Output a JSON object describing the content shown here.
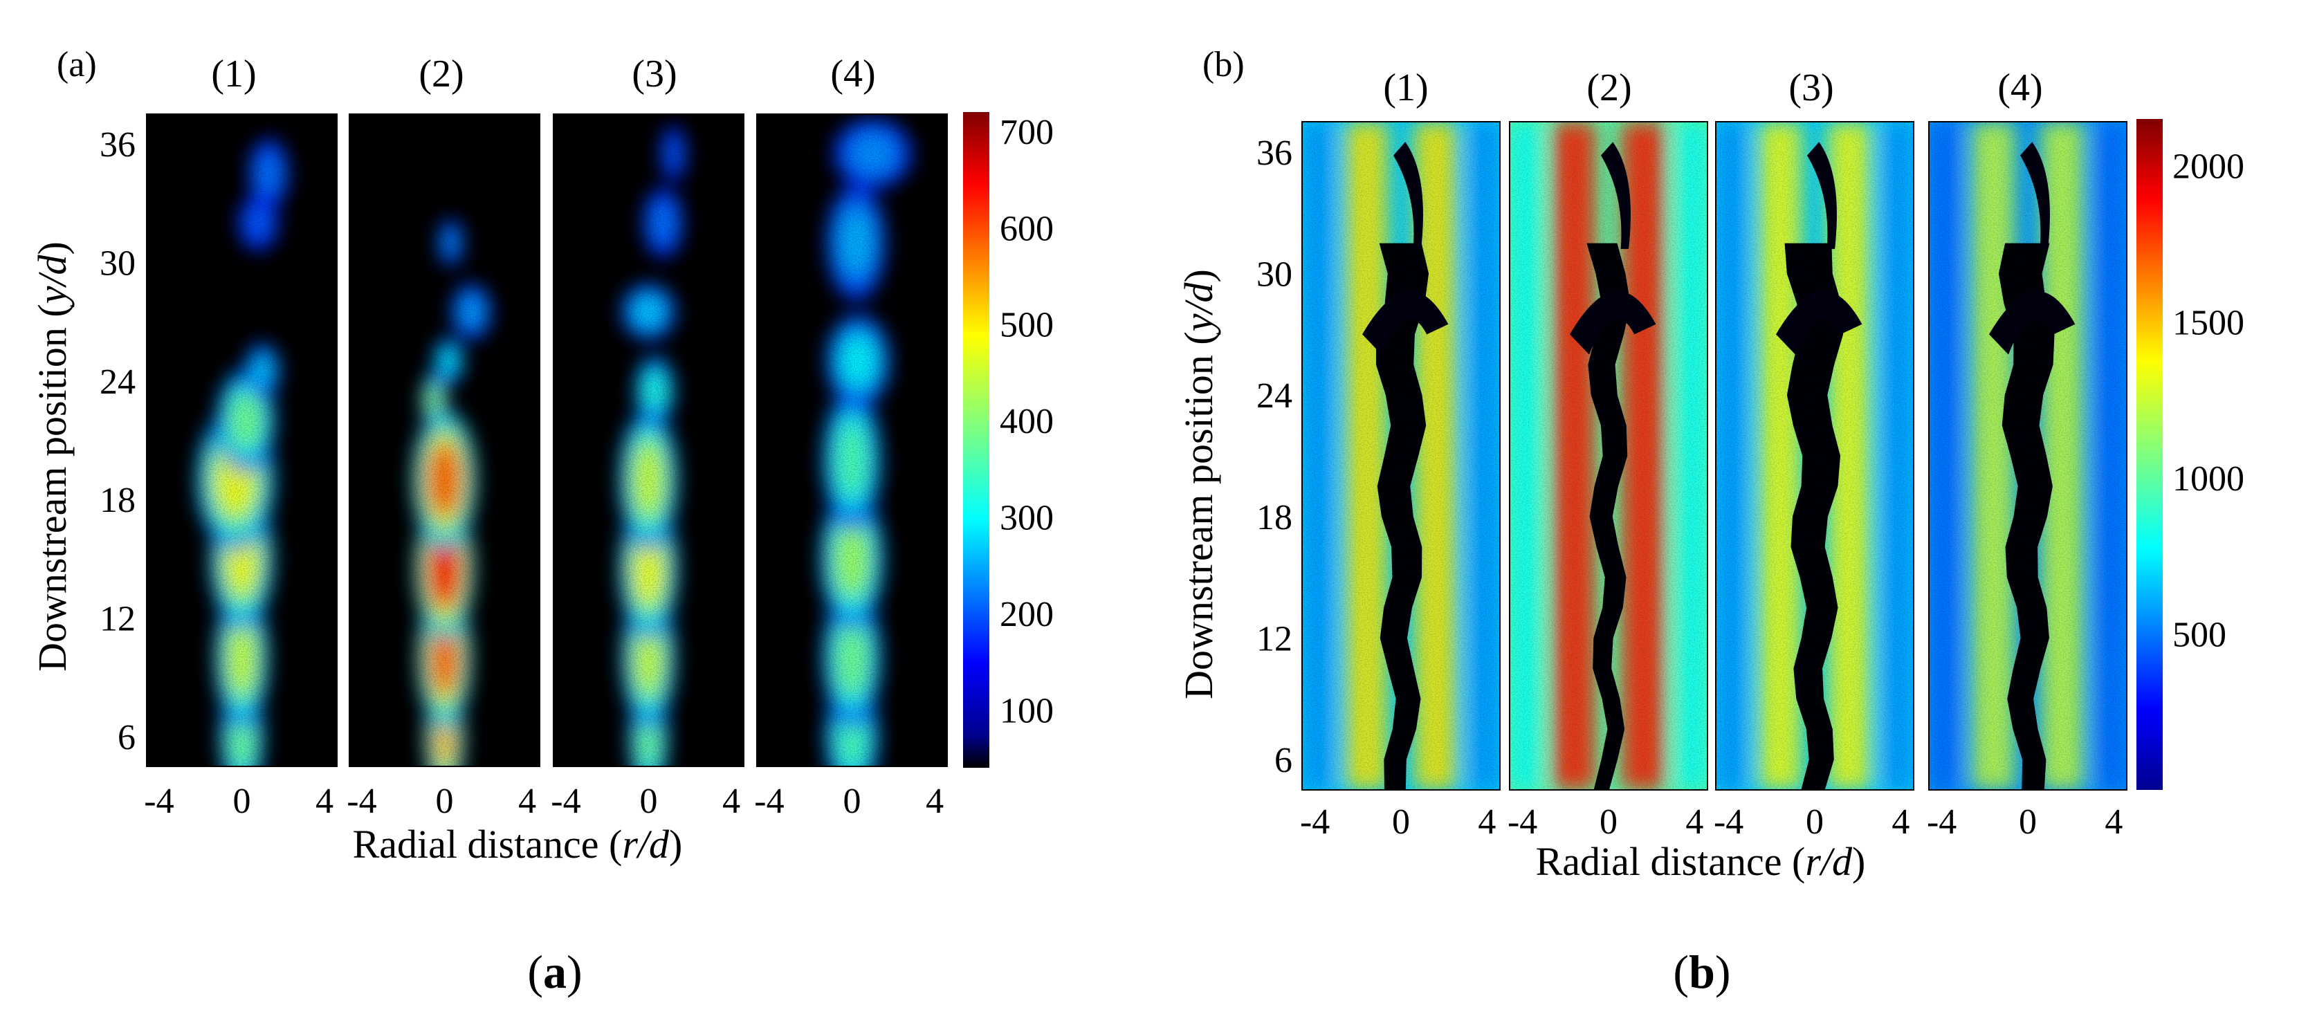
{
  "figure": {
    "captions": [
      {
        "open": "(",
        "letter": "a",
        "close": ")"
      },
      {
        "open": "(",
        "letter": "b",
        "close": ")"
      }
    ]
  },
  "chart_data": [
    {
      "type": "heatmap",
      "panel_label": "(a)",
      "subplot_titles": [
        "(1)",
        "(2)",
        "(3)",
        "(4)"
      ],
      "ylabel_prefix": "Downstream position (",
      "ylabel_var": "y/d",
      "ylabel_suffix": ")",
      "xlabel_prefix": "Radial distance (",
      "xlabel_var": "r/d",
      "xlabel_suffix": ")",
      "xticks": [
        "-4",
        "0",
        "4"
      ],
      "xlim": [
        -4.6,
        4.6
      ],
      "yticks": [
        "6",
        "12",
        "18",
        "24",
        "30",
        "36"
      ],
      "ylim": [
        4.5,
        37.5
      ],
      "colorbar_ticks": [
        "100",
        "200",
        "300",
        "400",
        "500",
        "600",
        "700"
      ],
      "colorbar_range": [
        40,
        720
      ],
      "colormap": "jet",
      "background": "#000000",
      "variant": "jet",
      "fields": [
        {
          "blobs": [
            [
              0,
              6,
              0.9,
              2.5,
              0.45
            ],
            [
              0,
              10,
              1.1,
              3,
              0.55
            ],
            [
              0,
              15,
              1.3,
              3,
              0.6
            ],
            [
              -0.3,
              19,
              1.6,
              3,
              0.6
            ],
            [
              0.2,
              22,
              1.2,
              2.2,
              0.45
            ],
            [
              1.0,
              24.5,
              0.7,
              1.2,
              0.25
            ],
            [
              1.3,
              34.5,
              0.8,
              1.5,
              0.15
            ],
            [
              0.8,
              32,
              0.8,
              1.2,
              0.12
            ]
          ]
        },
        {
          "blobs": [
            [
              0,
              6,
              0.8,
              2.5,
              0.7
            ],
            [
              0,
              10,
              1.1,
              3,
              0.8
            ],
            [
              0,
              14.5,
              1.2,
              3,
              0.9
            ],
            [
              0,
              19,
              1.3,
              3,
              0.8
            ],
            [
              -0.5,
              23,
              0.5,
              1.2,
              0.5
            ],
            [
              0.2,
              25,
              0.6,
              1,
              0.3
            ],
            [
              1.3,
              27.5,
              0.8,
              1.2,
              0.2
            ],
            [
              0.3,
              31,
              0.5,
              1,
              0.18
            ]
          ]
        },
        {
          "blobs": [
            [
              0,
              6,
              0.8,
              2.5,
              0.45
            ],
            [
              0,
              10,
              1.1,
              3,
              0.55
            ],
            [
              0,
              14.5,
              1.2,
              3,
              0.6
            ],
            [
              0,
              19,
              1.2,
              3,
              0.55
            ],
            [
              0.3,
              23.5,
              0.8,
              1.5,
              0.35
            ],
            [
              0,
              27.5,
              1.1,
              1.2,
              0.25
            ],
            [
              0.7,
              32,
              0.8,
              1.5,
              0.15
            ],
            [
              1.2,
              35.5,
              0.5,
              1.2,
              0.12
            ]
          ]
        },
        {
          "blobs": [
            [
              0,
              6,
              1.1,
              2.5,
              0.4
            ],
            [
              0,
              10,
              1.2,
              3,
              0.45
            ],
            [
              0,
              15,
              1.3,
              3,
              0.5
            ],
            [
              0,
              20,
              1.2,
              3,
              0.4
            ],
            [
              0.3,
              25,
              1.3,
              2,
              0.3
            ],
            [
              0.2,
              31,
              1.2,
              2.5,
              0.22
            ],
            [
              1.0,
              35.5,
              1.6,
              1.5,
              0.18
            ]
          ]
        }
      ]
    },
    {
      "type": "heatmap",
      "panel_label": "(b)",
      "subplot_titles": [
        "(1)",
        "(2)",
        "(3)",
        "(4)"
      ],
      "ylabel_prefix": "Downstream position (",
      "ylabel_var": "y/d",
      "ylabel_suffix": ")",
      "xlabel_prefix": "Radial distance (",
      "xlabel_var": "r/d",
      "xlabel_suffix": ")",
      "xticks": [
        "-4",
        "0",
        "4"
      ],
      "xlim": [
        -4.6,
        4.6
      ],
      "yticks": [
        "6",
        "12",
        "18",
        "24",
        "30",
        "36"
      ],
      "ylim": [
        4.5,
        37.5
      ],
      "colorbar_ticks": [
        "500",
        "1000",
        "1500",
        "2000"
      ],
      "colorbar_range": [
        0,
        2150
      ],
      "colormap": "jet",
      "background": "#1f9fe8",
      "variant": "jetb",
      "fields": [
        {
          "level": 0.5,
          "hole_width": 0.9,
          "bright": 0.68
        },
        {
          "level": 0.7,
          "hole_width": 0.65,
          "bright": 0.9
        },
        {
          "level": 0.5,
          "hole_width": 1.0,
          "bright": 0.65
        },
        {
          "level": 0.42,
          "hole_width": 0.95,
          "bright": 0.6
        }
      ]
    }
  ]
}
